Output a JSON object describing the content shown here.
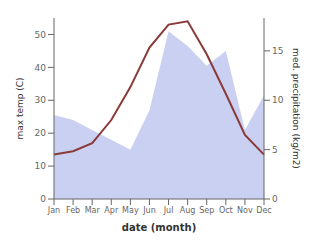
{
  "chart_data": {
    "type": "line",
    "xlabel": "date (month)",
    "ylabel": "max temp (C)",
    "y2label": "med. precipitation (kg/m2)",
    "categories": [
      "Jan",
      "Feb",
      "Mar",
      "Apr",
      "May",
      "Jun",
      "Jul",
      "Aug",
      "Sep",
      "Oct",
      "Nov",
      "Dec"
    ],
    "series": [
      {
        "type": "area",
        "axis": "y2",
        "color": "#b8c0ee",
        "values": [
          8.5,
          8.0,
          7.0,
          6.0,
          5.0,
          9.0,
          17.0,
          15.5,
          13.5,
          15.0,
          7.0,
          10.5
        ]
      },
      {
        "type": "line",
        "color": "#8B3A3A",
        "values": [
          13.5,
          14.5,
          17.0,
          24.0,
          34.0,
          46.0,
          53.0,
          54.0,
          44.0,
          32.0,
          19.5,
          13.5
        ]
      }
    ],
    "ylim": [
      0,
      55
    ],
    "yticks": [
      0,
      10,
      20,
      30,
      40,
      50
    ],
    "y2lim": [
      0,
      18.33
    ],
    "y2ticks": [
      0,
      5,
      10,
      15
    ],
    "grid": false
  }
}
